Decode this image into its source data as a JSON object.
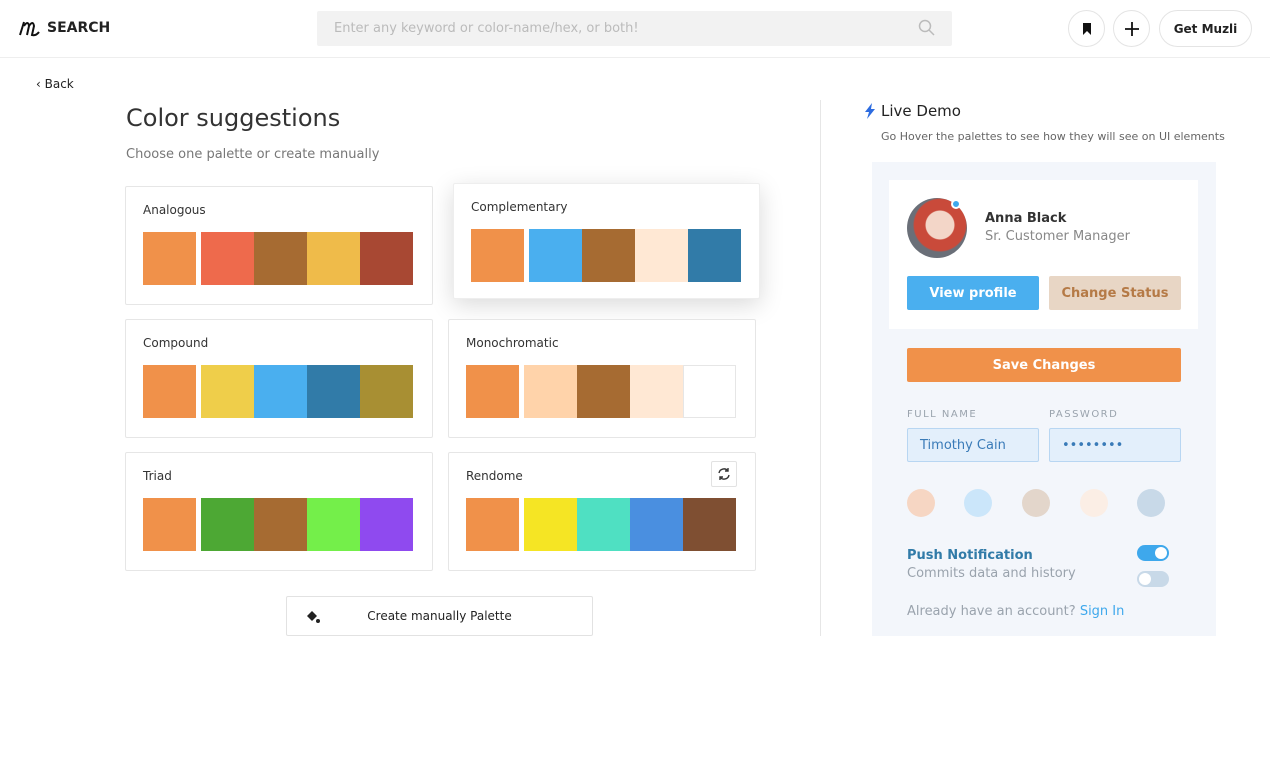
{
  "header": {
    "brand": "SEARCH",
    "search_placeholder": "Enter any keyword or color-name/hex, or both!",
    "button": "Get Muzli"
  },
  "back": "Back",
  "suggestions": {
    "title": "Color suggestions",
    "subtitle": "Choose one palette or create manually",
    "palettes": [
      {
        "name": "Analogous",
        "colors": [
          "#F0914A",
          "#EE6A4C",
          "#A66B32",
          "#EFBB4A",
          "#A84833"
        ]
      },
      {
        "name": "Complementary",
        "colors": [
          "#F0914A",
          "#4AAFEF",
          "#A66B32",
          "#FFE8D4",
          "#317BA8"
        ]
      },
      {
        "name": "Compound",
        "colors": [
          "#F0914A",
          "#EFCE4A",
          "#4AAFEF",
          "#317BA8",
          "#A88F33"
        ]
      },
      {
        "name": "Monochromatic",
        "colors": [
          "#F0914A",
          "#FFD3AA",
          "#A66B32",
          "#FFE8D4",
          "#FFFFFF"
        ]
      },
      {
        "name": "Triad",
        "colors": [
          "#F0914A",
          "#4DA834",
          "#A66B32",
          "#74EF4A",
          "#8F4AEF"
        ]
      },
      {
        "name": "Rendome",
        "colors": [
          "#F0914A",
          "#F5E524",
          "#4FE0C2",
          "#4A8FE0",
          "#7F4F32"
        ]
      }
    ],
    "create_button": "Create manually Palette"
  },
  "demo": {
    "title": "Live Demo",
    "hint": "Go Hover the palettes to see how they will see on UI elements",
    "profile": {
      "name": "Anna Black",
      "role": "Sr. Customer Manager",
      "view_button": "View profile",
      "status_button": "Change Status"
    },
    "save_button": "Save Changes",
    "fields": [
      {
        "label": "FULL NAME",
        "value": "Timothy Cain"
      },
      {
        "label": "PASSWORD",
        "value": "••••••••"
      }
    ],
    "notification": {
      "title": "Push Notification",
      "text": "Commits data and history"
    },
    "signin": {
      "text": "Already have an account?",
      "link": "Sign In"
    }
  }
}
